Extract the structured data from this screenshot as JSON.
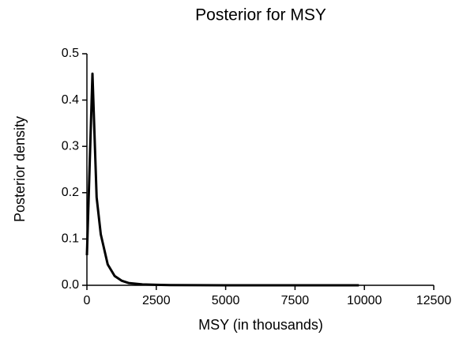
{
  "chart_data": {
    "type": "line",
    "title": "Posterior for MSY",
    "xlabel": "MSY (in thousands)",
    "ylabel": "Posterior density",
    "x": [
      0,
      200,
      350,
      500,
      750,
      1000,
      1250,
      1500,
      2000,
      2500,
      3000,
      5000,
      7500,
      9800
    ],
    "series": [
      {
        "name": "Posterior",
        "color": "#000000",
        "values": [
          0.065,
          0.457,
          0.19,
          0.11,
          0.045,
          0.02,
          0.01,
          0.005,
          0.002,
          0.001,
          0.0005,
          0,
          0,
          0
        ]
      }
    ],
    "xlim": [
      0,
      12500
    ],
    "xticks": [
      0,
      2500,
      5000,
      7500,
      10000,
      12500
    ],
    "ylim": [
      0,
      0.5
    ],
    "yticks": [
      {
        "value": 0,
        "label": "0.0"
      },
      0.1,
      0.2,
      0.3,
      0.4,
      0.5
    ],
    "grid": false
  }
}
